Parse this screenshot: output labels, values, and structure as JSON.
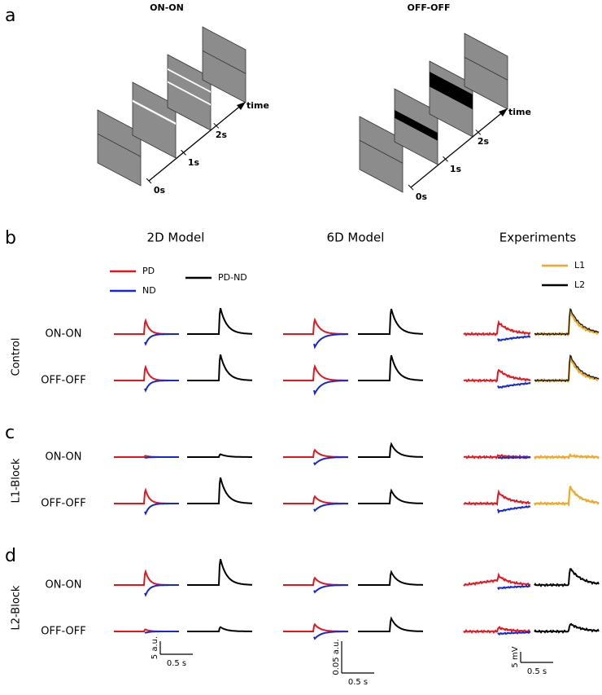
{
  "panel_a": {
    "label": "a",
    "diagrams": [
      {
        "title": "ON-ON",
        "axis_label": "time",
        "ticks": [
          "0s",
          "1s",
          "2s"
        ]
      },
      {
        "title": "OFF-OFF",
        "axis_label": "time",
        "ticks": [
          "0s",
          "1s",
          "2s"
        ]
      }
    ]
  },
  "panel_b": {
    "columns": [
      "2D Model",
      "6D Model",
      "Experiments"
    ],
    "legend_model": [
      {
        "name": "PD",
        "color": "#e8141c"
      },
      {
        "name": "ND",
        "color": "#1428d8"
      },
      {
        "name": "PD-ND",
        "color": "#000000"
      }
    ],
    "legend_experiment": [
      {
        "name": "L1",
        "color": "#f5a623"
      },
      {
        "name": "L2",
        "color": "#000000"
      }
    ]
  },
  "groups": [
    {
      "panel_label": "b",
      "name": "Control",
      "rows": [
        "ON-ON",
        "OFF-OFF"
      ]
    },
    {
      "panel_label": "c",
      "name": "L1-Block",
      "rows": [
        "ON-ON",
        "OFF-OFF"
      ]
    },
    {
      "panel_label": "d",
      "name": "L2-Block",
      "rows": [
        "ON-ON",
        "OFF-OFF"
      ]
    }
  ],
  "scale_bars": [
    {
      "vertical": "5 a.u.",
      "horizontal": "0.5 s"
    },
    {
      "vertical": "0.05 a.u.",
      "horizontal": "0.5 s"
    },
    {
      "vertical": "5 mV",
      "horizontal": "0.5 s"
    }
  ]
}
